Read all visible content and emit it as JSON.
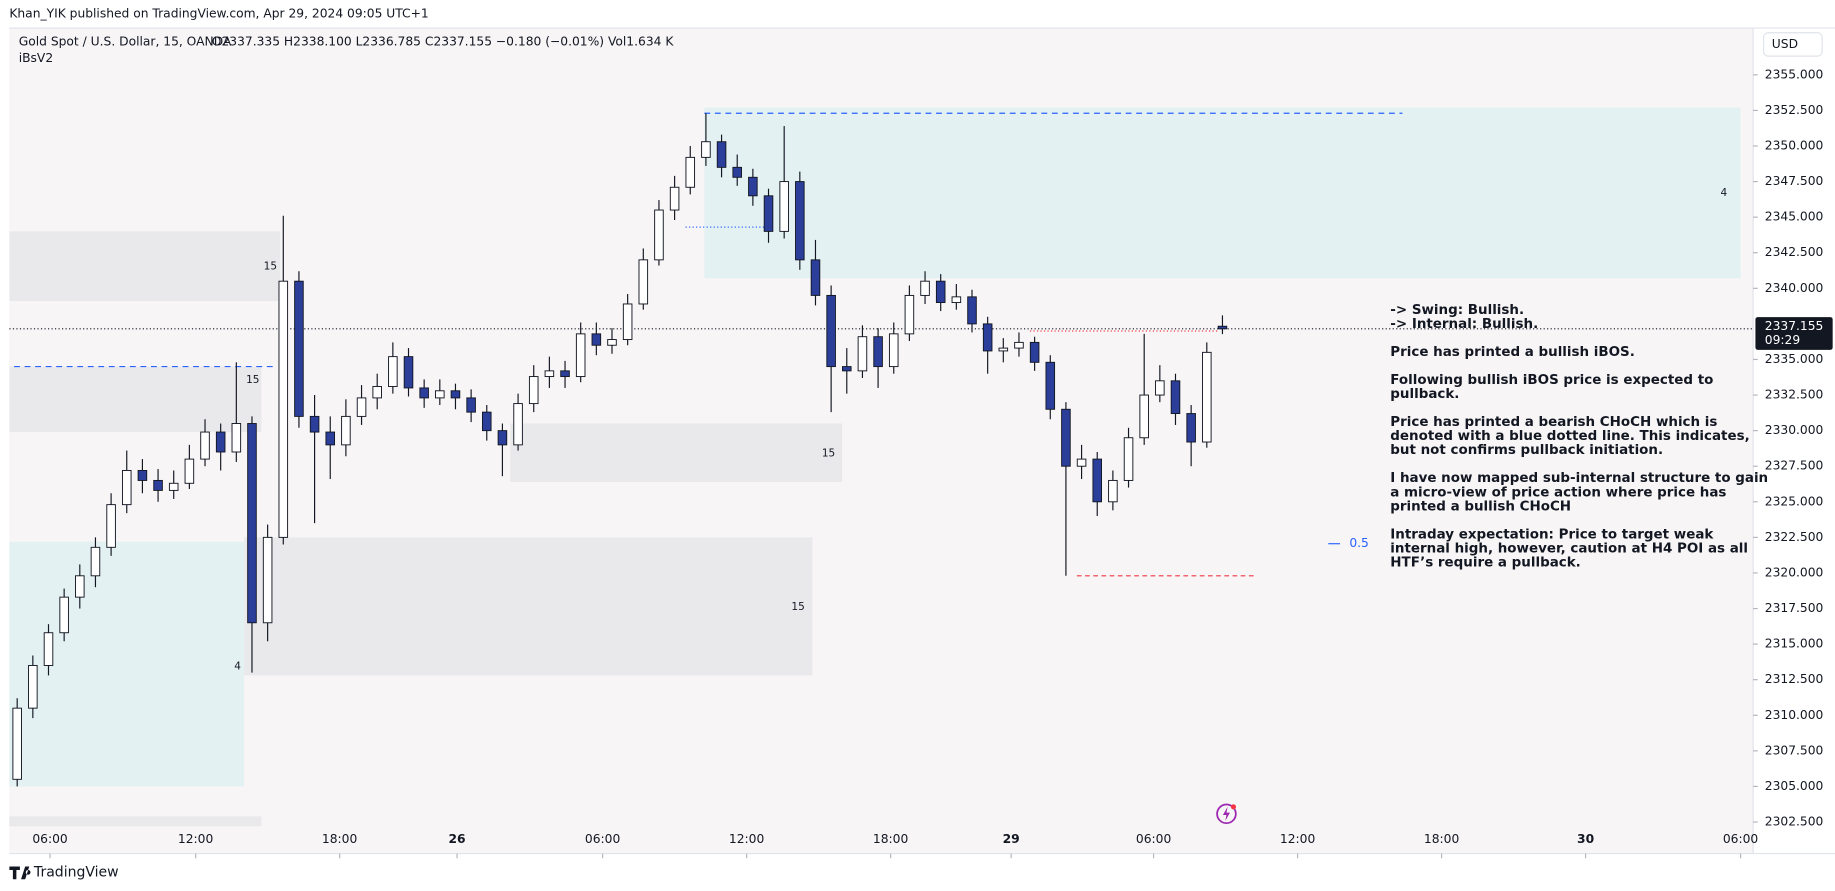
{
  "chart_data": {
    "type": "candlestick",
    "publisher": "Khan_YIK published on TradingView.com, Apr 29, 2024 09:05 UTC+1",
    "symbol": "Gold Spot / U.S. Dollar, 15, OANDA",
    "ohlc_text": "O2337.335  H2338.100  L2336.785  C2337.155  −0.180 (−0.01%)  Vol1.634 K",
    "indicator": "iBsV2",
    "currency": "USD",
    "brand": "TradingView",
    "bull_color": "#ffffff",
    "bear_color": "#2b3f9a",
    "wick_color": "#131722",
    "candles": [
      [
        2305.5,
        2311.2,
        2305.0,
        2310.5
      ],
      [
        2310.5,
        2314.2,
        2309.8,
        2313.5
      ],
      [
        2313.5,
        2316.4,
        2312.8,
        2315.8
      ],
      [
        2315.8,
        2318.9,
        2315.2,
        2318.3
      ],
      [
        2318.3,
        2320.6,
        2317.5,
        2319.8
      ],
      [
        2319.8,
        2322.5,
        2319.0,
        2321.8
      ],
      [
        2321.8,
        2325.6,
        2321.2,
        2324.8
      ],
      [
        2324.8,
        2328.6,
        2324.2,
        2327.2
      ],
      [
        2327.2,
        2328.0,
        2325.6,
        2326.5
      ],
      [
        2326.5,
        2327.3,
        2325.0,
        2325.8
      ],
      [
        2325.8,
        2327.2,
        2325.2,
        2326.3
      ],
      [
        2326.3,
        2329.0,
        2325.9,
        2328.0
      ],
      [
        2328.0,
        2330.8,
        2327.5,
        2329.9
      ],
      [
        2329.9,
        2330.5,
        2327.2,
        2328.5
      ],
      [
        2328.5,
        2334.8,
        2327.8,
        2330.5
      ],
      [
        2330.5,
        2331.0,
        2313.0,
        2316.5
      ],
      [
        2316.5,
        2323.4,
        2315.2,
        2322.5
      ],
      [
        2322.5,
        2345.1,
        2322.0,
        2340.5
      ],
      [
        2340.5,
        2341.2,
        2330.2,
        2331.0
      ],
      [
        2331.0,
        2332.5,
        2323.5,
        2329.9
      ],
      [
        2329.9,
        2331.0,
        2326.6,
        2329.0
      ],
      [
        2329.0,
        2332.2,
        2328.2,
        2331.0
      ],
      [
        2331.0,
        2333.2,
        2330.4,
        2332.3
      ],
      [
        2332.3,
        2334.0,
        2331.5,
        2333.1
      ],
      [
        2333.1,
        2336.2,
        2332.6,
        2335.2
      ],
      [
        2335.2,
        2335.8,
        2332.4,
        2333.0
      ],
      [
        2333.0,
        2333.6,
        2331.6,
        2332.3
      ],
      [
        2332.3,
        2333.6,
        2331.8,
        2332.8
      ],
      [
        2332.8,
        2333.3,
        2331.5,
        2332.3
      ],
      [
        2332.3,
        2332.9,
        2330.6,
        2331.3
      ],
      [
        2331.3,
        2331.8,
        2329.3,
        2330.0
      ],
      [
        2330.0,
        2330.5,
        2326.8,
        2329.0
      ],
      [
        2329.0,
        2332.6,
        2328.6,
        2331.9
      ],
      [
        2331.9,
        2334.6,
        2331.3,
        2333.8
      ],
      [
        2333.8,
        2335.2,
        2333.0,
        2334.2
      ],
      [
        2334.2,
        2334.9,
        2333.0,
        2333.8
      ],
      [
        2333.8,
        2337.6,
        2333.4,
        2336.8
      ],
      [
        2336.8,
        2337.6,
        2335.3,
        2336.0
      ],
      [
        2336.0,
        2337.2,
        2335.4,
        2336.4
      ],
      [
        2336.4,
        2339.6,
        2336.0,
        2338.9
      ],
      [
        2338.9,
        2342.8,
        2338.5,
        2342.0
      ],
      [
        2342.0,
        2346.2,
        2341.6,
        2345.5
      ],
      [
        2345.5,
        2347.9,
        2344.8,
        2347.1
      ],
      [
        2347.1,
        2350.0,
        2346.6,
        2349.2
      ],
      [
        2349.2,
        2352.3,
        2348.6,
        2350.3
      ],
      [
        2350.3,
        2350.8,
        2347.8,
        2348.5
      ],
      [
        2348.5,
        2349.4,
        2347.2,
        2347.8
      ],
      [
        2347.8,
        2348.4,
        2345.8,
        2346.5
      ],
      [
        2346.5,
        2347.0,
        2343.2,
        2344.0
      ],
      [
        2344.0,
        2351.4,
        2343.5,
        2347.5
      ],
      [
        2347.5,
        2348.2,
        2341.3,
        2342.0
      ],
      [
        2342.0,
        2343.4,
        2338.8,
        2339.5
      ],
      [
        2339.5,
        2340.2,
        2331.3,
        2334.5
      ],
      [
        2334.5,
        2335.8,
        2332.6,
        2334.2
      ],
      [
        2334.2,
        2337.4,
        2333.7,
        2336.6
      ],
      [
        2336.6,
        2337.2,
        2333.0,
        2334.5
      ],
      [
        2334.5,
        2337.6,
        2334.0,
        2336.8
      ],
      [
        2336.8,
        2340.2,
        2336.3,
        2339.5
      ],
      [
        2339.5,
        2341.2,
        2338.9,
        2340.5
      ],
      [
        2340.5,
        2341.0,
        2338.4,
        2339.0
      ],
      [
        2339.0,
        2340.3,
        2338.5,
        2339.4
      ],
      [
        2339.4,
        2339.9,
        2336.9,
        2337.5
      ],
      [
        2337.5,
        2338.0,
        2334.0,
        2335.6
      ],
      [
        2335.6,
        2336.5,
        2334.8,
        2335.8
      ],
      [
        2335.8,
        2336.9,
        2335.2,
        2336.2
      ],
      [
        2336.2,
        2336.6,
        2334.2,
        2334.8
      ],
      [
        2334.8,
        2335.3,
        2330.8,
        2331.5
      ],
      [
        2331.5,
        2332.0,
        2319.8,
        2327.5
      ],
      [
        2327.5,
        2329.0,
        2326.6,
        2328.0
      ],
      [
        2328.0,
        2328.5,
        2324.0,
        2325.0
      ],
      [
        2325.0,
        2327.2,
        2324.4,
        2326.5
      ],
      [
        2326.5,
        2330.2,
        2326.0,
        2329.5
      ],
      [
        2329.5,
        2336.8,
        2329.0,
        2332.5
      ],
      [
        2332.5,
        2334.6,
        2332.0,
        2333.5
      ],
      [
        2333.5,
        2334.0,
        2330.4,
        2331.2
      ],
      [
        2331.2,
        2331.8,
        2327.5,
        2329.2
      ],
      [
        2329.2,
        2336.2,
        2328.8,
        2335.5
      ],
      [
        2337.335,
        2338.1,
        2336.785,
        2337.155
      ]
    ],
    "xlim": [
      0,
      111.4
    ],
    "xticks": [
      {
        "value": 2.6,
        "label": "06:00"
      },
      {
        "value": 11.9,
        "label": "12:00"
      },
      {
        "value": 21.1,
        "label": "18:00"
      },
      {
        "value": 28.6,
        "label": "26"
      },
      {
        "value": 37.9,
        "label": "06:00"
      },
      {
        "value": 47.1,
        "label": "12:00"
      },
      {
        "value": 56.3,
        "label": "18:00"
      },
      {
        "value": 64.0,
        "label": "29"
      },
      {
        "value": 73.1,
        "label": "06:00"
      },
      {
        "value": 82.3,
        "label": "12:00"
      },
      {
        "value": 91.5,
        "label": "18:00"
      },
      {
        "value": 100.7,
        "label": "30"
      },
      {
        "value": 110.6,
        "label": "06:00"
      }
    ],
    "ylim": [
      2302.5,
      2355
    ],
    "yticks": [
      {
        "value": 2302.5,
        "label": "2302.500"
      },
      {
        "value": 2305,
        "label": "2305.000"
      },
      {
        "value": 2307.5,
        "label": "2307.500"
      },
      {
        "value": 2310,
        "label": "2310.000"
      },
      {
        "value": 2312.5,
        "label": "2312.500"
      },
      {
        "value": 2315,
        "label": "2315.000"
      },
      {
        "value": 2317.5,
        "label": "2317.500"
      },
      {
        "value": 2320,
        "label": "2320.000"
      },
      {
        "value": 2322.5,
        "label": "2322.500"
      },
      {
        "value": 2325,
        "label": "2325.000"
      },
      {
        "value": 2327.5,
        "label": "2327.500"
      },
      {
        "value": 2330,
        "label": "2330.000"
      },
      {
        "value": 2332.5,
        "label": "2332.500"
      },
      {
        "value": 2335,
        "label": "2335.000"
      },
      {
        "value": 2340,
        "label": "2340.000"
      },
      {
        "value": 2342.5,
        "label": "2342.500"
      },
      {
        "value": 2345,
        "label": "2345.000"
      },
      {
        "value": 2347.5,
        "label": "2347.500"
      },
      {
        "value": 2350,
        "label": "2350.000"
      },
      {
        "value": 2352.5,
        "label": "2352.500"
      },
      {
        "value": 2355,
        "label": "2355.000"
      }
    ],
    "last": {
      "value": 2337.155,
      "label": "2337.155",
      "time": "09:29",
      "color": "#131722"
    },
    "zones": [
      {
        "x": [
          0,
          17.3
        ],
        "y": [
          2339.1,
          2344.0
        ],
        "color": "#e9e9eb"
      },
      {
        "x": [
          0,
          16.1
        ],
        "y": [
          2329.9,
          2334.5
        ],
        "color": "#e9e9eb"
      },
      {
        "x": [
          0,
          15.0
        ],
        "y": [
          2305.0,
          2322.2
        ],
        "color": "#e4f1f3"
      },
      {
        "x": [
          15.0,
          51.3
        ],
        "y": [
          2312.8,
          2322.5
        ],
        "color": "#e9e9eb"
      },
      {
        "x": [
          32.0,
          53.2
        ],
        "y": [
          2326.4,
          2330.5
        ],
        "color": "#e9e9eb"
      },
      {
        "x": [
          44.4,
          110.6
        ],
        "y": [
          2340.7,
          2352.7
        ],
        "color": "#e4f1f3"
      },
      {
        "x": [
          0,
          16.1
        ],
        "y": [
          2302.2,
          2302.9
        ],
        "color": "#e9e9eb"
      }
    ],
    "zone_labels": [
      "15",
      "15",
      "4",
      "15",
      "15",
      "4"
    ],
    "lines": [
      {
        "y": 2352.3,
        "x": [
          44.4,
          89.0
        ],
        "color": "#2962ff",
        "dash": "5 4"
      },
      {
        "y": 2334.5,
        "x": [
          0.3,
          17.0
        ],
        "color": "#2962ff",
        "dash": "5 4"
      },
      {
        "y": 2344.3,
        "x": [
          43.2,
          48.6
        ],
        "color": "#2962ff",
        "dash": "1 2"
      },
      {
        "y": 2337.0,
        "x": [
          65.2,
          77.3
        ],
        "color": "#f23645",
        "dash": "1 2"
      },
      {
        "y": 2319.8,
        "x": [
          68.2,
          79.7
        ],
        "color": "#f23645",
        "dash": "4 3"
      }
    ],
    "fib_label": 0.5,
    "notes": [
      "-> Swing: Bullish.",
      "-> Internal: Bullish.",
      "Price has printed a bullish iBOS.",
      "Following bullish iBOS price is expected to",
      "pullback.",
      "Price has printed a bearish CHoCH which is",
      "denoted with a blue dotted line.  This indicates,",
      "but not confirms pullback initiation.",
      "I have now mapped sub-internal structure to gain",
      "a micro-view of price action where price has",
      "printed a bullish CHoCH",
      "Intraday expectation: Price to target weak",
      "internal high, however, caution at H4 POI as all",
      "HTF’s require a pullback."
    ]
  }
}
